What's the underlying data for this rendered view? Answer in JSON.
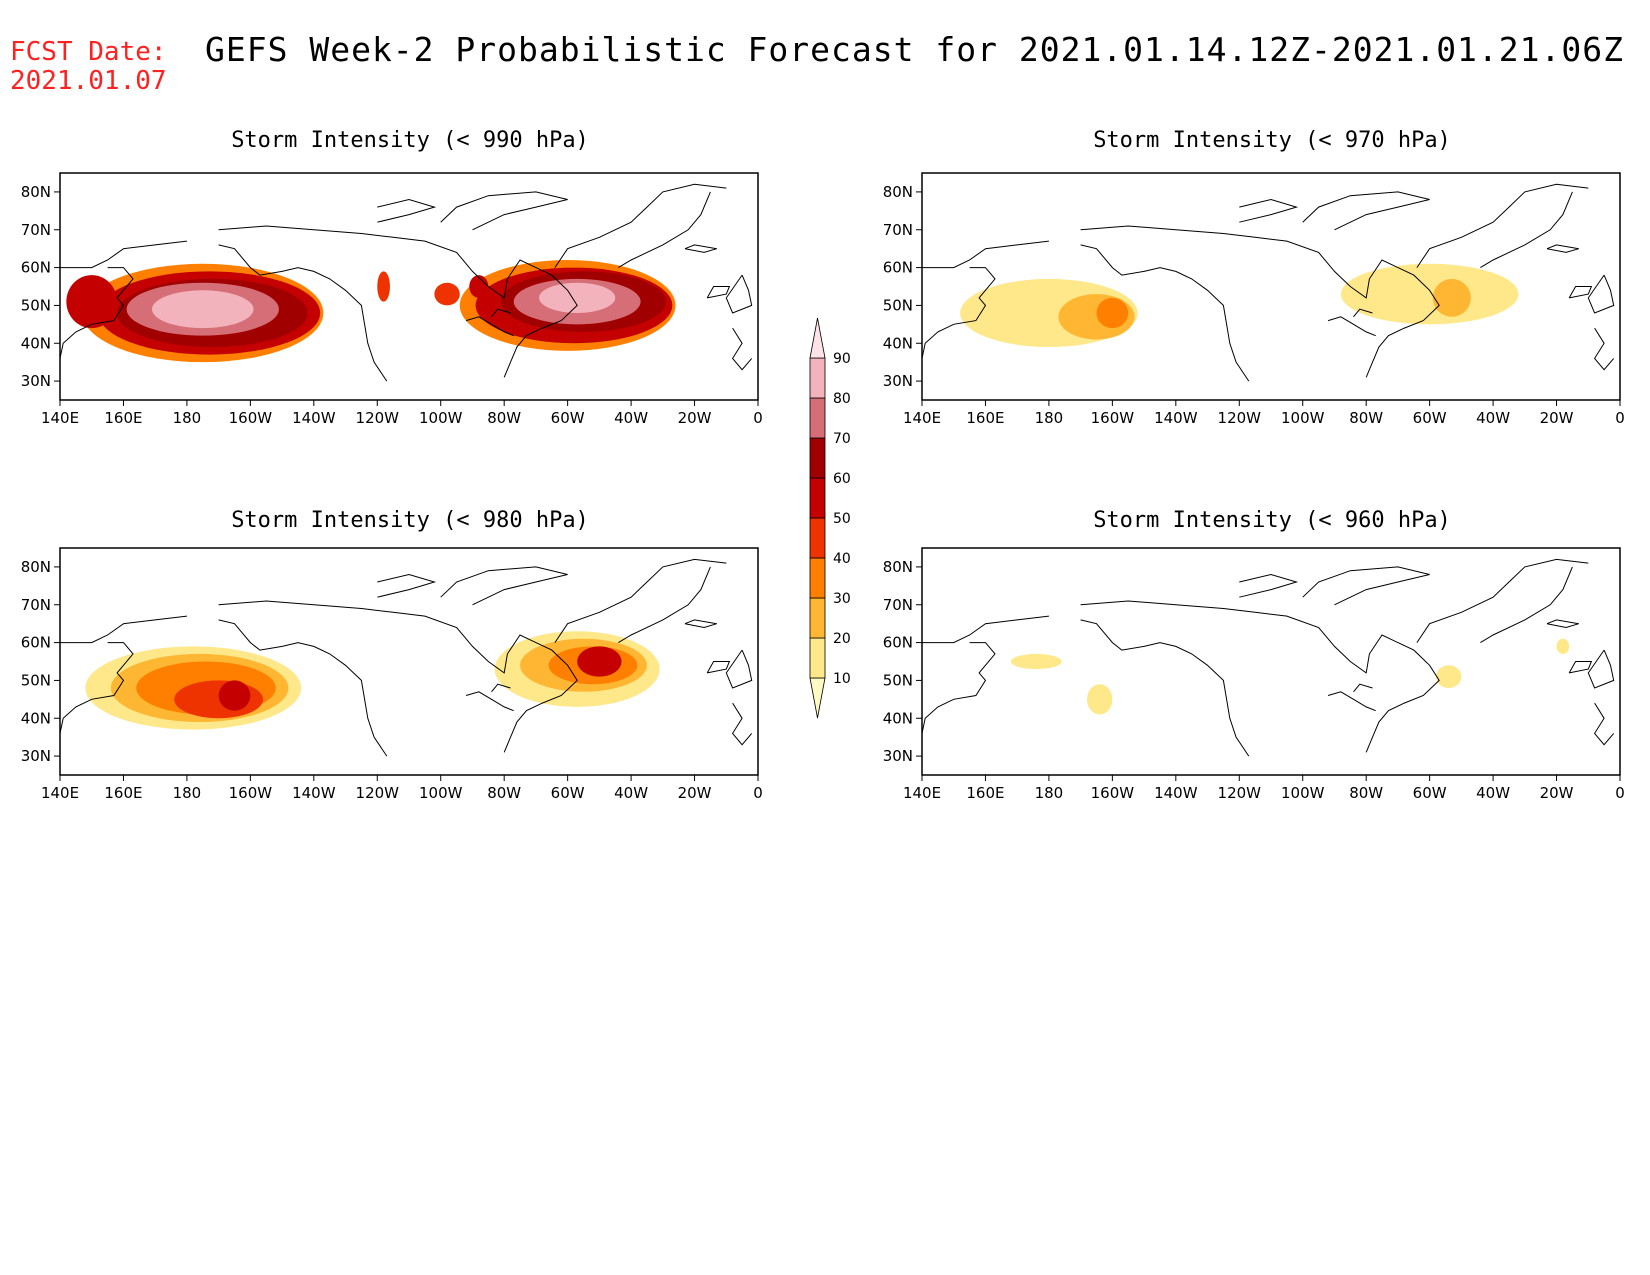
{
  "header": {
    "fcst_label": "FCST Date:",
    "fcst_date": "2021.01.07",
    "title": "GEFS Week-2 Probabilistic Forecast for 2021.01.14.12Z-2021.01.21.06Z"
  },
  "axes": {
    "lon_ticks": [
      "140E",
      "160E",
      "180",
      "160W",
      "140W",
      "120W",
      "100W",
      "80W",
      "60W",
      "40W",
      "20W",
      "0"
    ],
    "lat_ticks": [
      "30N",
      "40N",
      "50N",
      "60N",
      "70N",
      "80N"
    ]
  },
  "colorbar": {
    "levels": [
      "10",
      "20",
      "30",
      "40",
      "50",
      "60",
      "70",
      "80",
      "90"
    ],
    "colors": [
      "#fff9c4",
      "#ffe88a",
      "#ffb733",
      "#ff8000",
      "#ee3300",
      "#c40000",
      "#a00000",
      "#d66e78",
      "#f2b3bc",
      "#fde3e8"
    ]
  },
  "panels": [
    {
      "id": "p990",
      "title": "Storm Intensity (< 990 hPa)"
    },
    {
      "id": "p970",
      "title": "Storm Intensity (< 970 hPa)"
    },
    {
      "id": "p980",
      "title": "Storm Intensity (< 980 hPa)"
    },
    {
      "id": "p960",
      "title": "Storm Intensity (< 960 hPa)"
    }
  ]
}
